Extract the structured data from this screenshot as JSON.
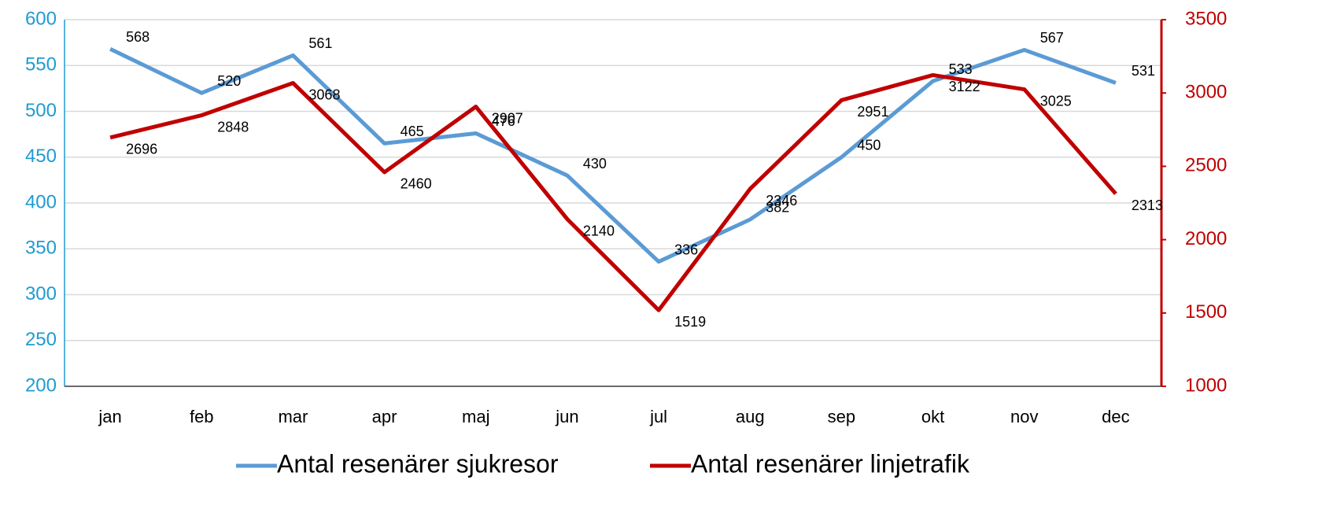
{
  "chart_data": {
    "type": "line",
    "categories": [
      "jan",
      "feb",
      "mar",
      "apr",
      "maj",
      "jun",
      "jul",
      "aug",
      "sep",
      "okt",
      "nov",
      "dec"
    ],
    "series": [
      {
        "name": "Antal resenärer sjukresor",
        "color": "#5b9bd5",
        "values": [
          568,
          520,
          561,
          465,
          476,
          430,
          336,
          382,
          450,
          533,
          567,
          531
        ]
      },
      {
        "name": "Antal resenärer linjetrafik",
        "color": "#c00000",
        "axis": "y2",
        "values": [
          2696,
          2848,
          3068,
          2460,
          2907,
          2140,
          1519,
          2346,
          2951,
          3122,
          3025,
          2313
        ]
      }
    ],
    "ylim": [
      200,
      600
    ],
    "yticks": [
      200,
      250,
      300,
      350,
      400,
      450,
      500,
      550,
      600
    ],
    "ycolor": "#1f9bd1",
    "y2lim": [
      1000,
      3500
    ],
    "y2ticks": [
      1000,
      1500,
      2000,
      2500,
      3000,
      3500
    ],
    "y2color": "#c00000",
    "grid": true,
    "legend": "bottom"
  }
}
